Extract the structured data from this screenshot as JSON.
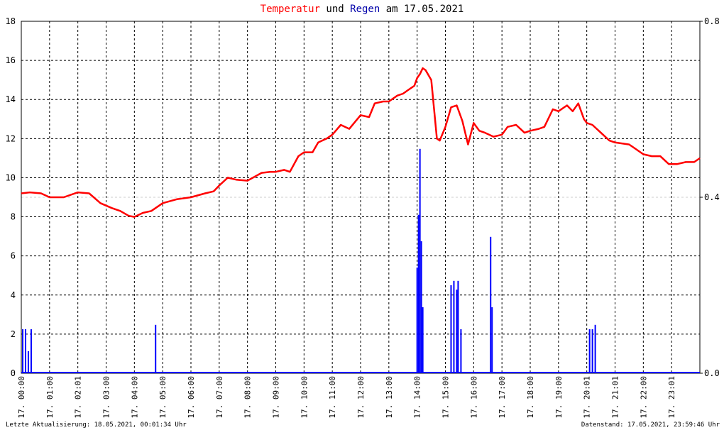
{
  "title": {
    "part1": "Temperatur",
    "part2": "und",
    "part3": "Regen",
    "part4": "am 17.05.2021"
  },
  "footer": {
    "left": "Letzte Aktualisierung: 18.05.2021, 00:01:34 Uhr",
    "right": "Datenstand: 17.05.2021, 23:59:46 Uhr"
  },
  "colors": {
    "temperature": "#ff0000",
    "rain": "#0000ff",
    "grid": "#000000",
    "rainGrid": "#cccccc"
  },
  "chart_data": {
    "type": "line",
    "grid": true,
    "x_axis": {
      "range_hours": [
        0,
        24
      ],
      "tick_labels": [
        "17. 00:00",
        "17. 01:00",
        "17. 02:01",
        "17. 03:00",
        "17. 04:00",
        "17. 05:00",
        "17. 06:00",
        "17. 07:00",
        "17. 08:00",
        "17. 09:00",
        "17. 10:00",
        "17. 11:00",
        "17. 12:00",
        "17. 13:00",
        "17. 14:00",
        "17. 15:00",
        "17. 16:00",
        "17. 17:00",
        "17. 18:00",
        "17. 19:00",
        "17. 20:01",
        "17. 21:01",
        "17. 22:00",
        "17. 23:01"
      ]
    },
    "y_left": {
      "ylim": [
        0,
        18
      ],
      "ticks": [
        "0",
        "2",
        "4",
        "6",
        "8",
        "10",
        "12",
        "14",
        "16",
        "18"
      ]
    },
    "y_right": {
      "ylim": [
        0,
        0.8
      ],
      "ticks": [
        "0.0",
        "0.4",
        "0.8"
      ]
    },
    "series": [
      {
        "axis": "left",
        "kind": "line",
        "x": [
          0,
          0.3,
          0.7,
          1.0,
          1.5,
          2.0,
          2.4,
          2.8,
          3.2,
          3.5,
          3.8,
          4.0,
          4.3,
          4.6,
          5.0,
          5.5,
          6.0,
          6.5,
          6.8,
          7.0,
          7.3,
          7.6,
          8.0,
          8.5,
          8.8,
          9.0,
          9.3,
          9.5,
          9.8,
          10.0,
          10.3,
          10.5,
          10.8,
          11.0,
          11.3,
          11.6,
          12.0,
          12.3,
          12.5,
          12.8,
          13.0,
          13.3,
          13.5,
          13.7,
          13.8,
          13.9,
          14.0,
          14.1,
          14.2,
          14.3,
          14.5,
          14.7,
          14.8,
          15.0,
          15.2,
          15.4,
          15.6,
          15.8,
          16.0,
          16.2,
          16.4,
          16.7,
          17.0,
          17.2,
          17.5,
          17.8,
          18.0,
          18.3,
          18.5,
          18.8,
          19.0,
          19.3,
          19.5,
          19.7,
          19.9,
          20.0,
          20.2,
          20.5,
          20.8,
          21.0,
          21.5,
          22.0,
          22.3,
          22.6,
          22.9,
          23.2,
          23.5,
          23.8,
          24.0
        ],
        "values": [
          9.2,
          9.25,
          9.2,
          9.0,
          9.0,
          9.25,
          9.2,
          8.7,
          8.45,
          8.3,
          8.05,
          8.0,
          8.2,
          8.3,
          8.7,
          8.9,
          9.0,
          9.2,
          9.3,
          9.6,
          10.0,
          9.9,
          9.85,
          10.25,
          10.3,
          10.3,
          10.4,
          10.3,
          11.1,
          11.3,
          11.3,
          11.8,
          12.0,
          12.2,
          12.7,
          12.5,
          13.2,
          13.1,
          13.8,
          13.9,
          13.9,
          14.2,
          14.3,
          14.5,
          14.6,
          14.7,
          15.1,
          15.3,
          15.6,
          15.5,
          15.0,
          12.0,
          11.9,
          12.6,
          13.6,
          13.7,
          12.9,
          11.7,
          12.8,
          12.4,
          12.3,
          12.1,
          12.2,
          12.6,
          12.7,
          12.3,
          12.4,
          12.5,
          12.6,
          13.5,
          13.4,
          13.7,
          13.4,
          13.8,
          13.0,
          12.8,
          12.7,
          12.3,
          11.9,
          11.8,
          11.7,
          11.2,
          11.1,
          11.1,
          10.7,
          10.7,
          10.8,
          10.8,
          11.0
        ]
      },
      {
        "axis": "right",
        "kind": "bar",
        "x": [
          0.05,
          0.15,
          0.25,
          0.35,
          4.75,
          14.0,
          14.05,
          14.1,
          14.15,
          14.2,
          15.2,
          15.3,
          15.4,
          15.45,
          15.55,
          16.6,
          16.65,
          20.1,
          20.2,
          20.3
        ],
        "values": [
          0.1,
          0.1,
          0.05,
          0.1,
          0.11,
          0.24,
          0.36,
          0.51,
          0.3,
          0.15,
          0.2,
          0.21,
          0.19,
          0.21,
          0.1,
          0.31,
          0.15,
          0.1,
          0.1,
          0.11
        ]
      }
    ]
  }
}
